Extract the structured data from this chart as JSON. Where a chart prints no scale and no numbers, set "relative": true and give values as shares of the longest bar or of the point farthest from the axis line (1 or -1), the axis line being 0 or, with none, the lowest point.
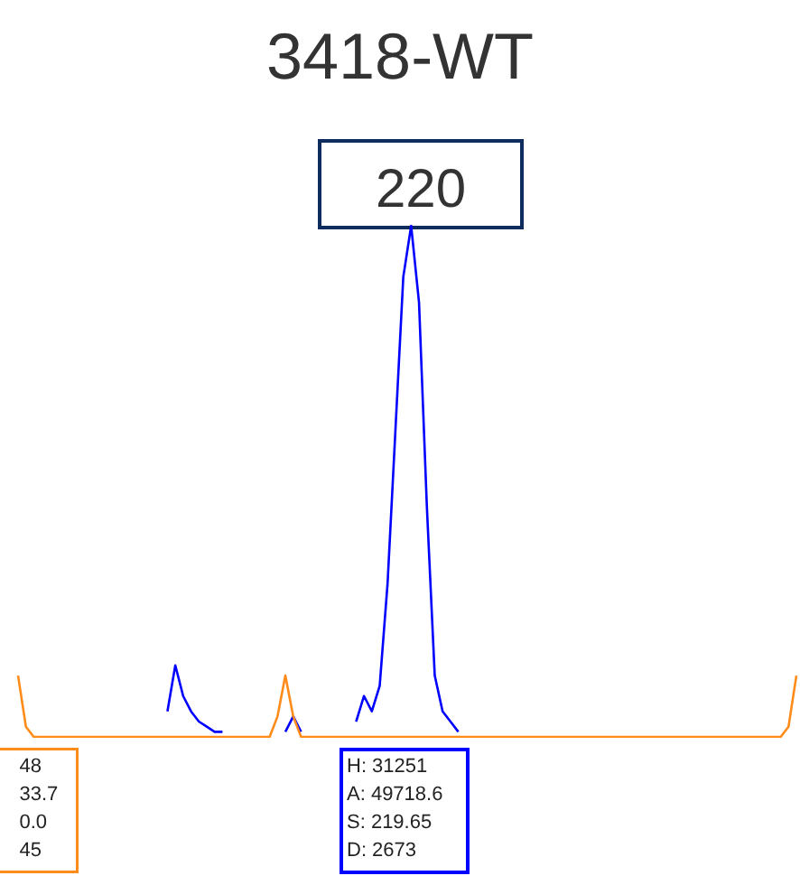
{
  "chart_data": {
    "type": "line",
    "title": "3418-WT",
    "relative": true,
    "grid": false,
    "line_style": "solid",
    "categories": [
      null,
      null,
      null,
      null,
      null,
      null,
      null,
      null,
      null,
      null,
      null,
      null,
      null,
      null,
      null,
      null,
      null,
      null,
      null,
      null,
      null,
      null,
      null,
      null,
      null,
      null,
      null,
      null,
      null,
      null,
      null,
      null,
      null,
      null,
      null,
      null,
      null,
      null,
      null,
      null,
      null,
      null,
      null,
      null,
      null,
      null,
      null,
      null,
      null,
      null,
      null,
      null,
      null,
      null,
      null,
      null,
      null,
      null,
      null,
      null,
      null,
      null,
      null,
      null,
      null,
      null,
      null,
      null,
      null,
      null,
      null,
      null,
      null,
      null,
      null,
      null,
      null,
      null,
      null,
      null,
      null,
      null,
      null,
      null,
      null,
      null,
      null,
      null,
      null,
      null,
      null,
      null,
      null,
      null,
      null,
      null,
      null,
      null,
      null,
      null
    ],
    "series": [
      {
        "color": "#0000ff",
        "values": [
          null,
          null,
          null,
          null,
          null,
          null,
          null,
          null,
          null,
          null,
          null,
          null,
          null,
          null,
          null,
          null,
          null,
          null,
          null,
          0.05,
          0.14,
          0.08,
          0.05,
          0.03,
          0.02,
          0.01,
          0.01,
          null,
          null,
          null,
          null,
          null,
          null,
          null,
          0.01,
          0.04,
          0.01,
          null,
          null,
          null,
          null,
          null,
          null,
          0.03,
          0.08,
          0.05,
          0.1,
          0.3,
          0.6,
          0.9,
          1,
          0.85,
          0.45,
          0.12,
          0.05,
          0.03,
          0.01,
          null,
          null,
          null,
          null,
          null,
          null,
          null,
          null,
          null,
          null,
          null,
          null,
          null,
          null,
          null,
          null,
          null,
          null,
          null,
          null,
          null,
          null,
          null,
          null,
          null,
          null,
          null,
          null,
          null,
          null,
          null,
          null,
          null,
          null,
          null,
          null,
          null,
          null,
          null,
          null,
          null,
          null,
          null
        ]
      },
      {
        "color": "#ff8c1a",
        "values": [
          0.12,
          0.02,
          0,
          0,
          0,
          0,
          0,
          0,
          0,
          0,
          0,
          0,
          0,
          0,
          0,
          0,
          0,
          0,
          0,
          0,
          0,
          0,
          0,
          0,
          0,
          0,
          0,
          0,
          0,
          0,
          0,
          0,
          0,
          0.04,
          0.12,
          0.04,
          0,
          0,
          0,
          0,
          0,
          0,
          0,
          0,
          0,
          0,
          0,
          0,
          0,
          0,
          0,
          0,
          0,
          0,
          0,
          0,
          0,
          0,
          0,
          0,
          0,
          0,
          0,
          0,
          0,
          0,
          0,
          0,
          0,
          0,
          0,
          0,
          0,
          0,
          0,
          0,
          0,
          0,
          0,
          0,
          0,
          0,
          0,
          0,
          0,
          0,
          0,
          0,
          0,
          0,
          0,
          0,
          0,
          0,
          0,
          0,
          0,
          0,
          0.02,
          0.12
        ]
      }
    ],
    "annotations": [
      "220",
      "H: 31251",
      "A: 49718.6",
      "S: 219.65",
      "D: 2673",
      "48",
      "33.7",
      "0.0",
      "45"
    ]
  }
}
